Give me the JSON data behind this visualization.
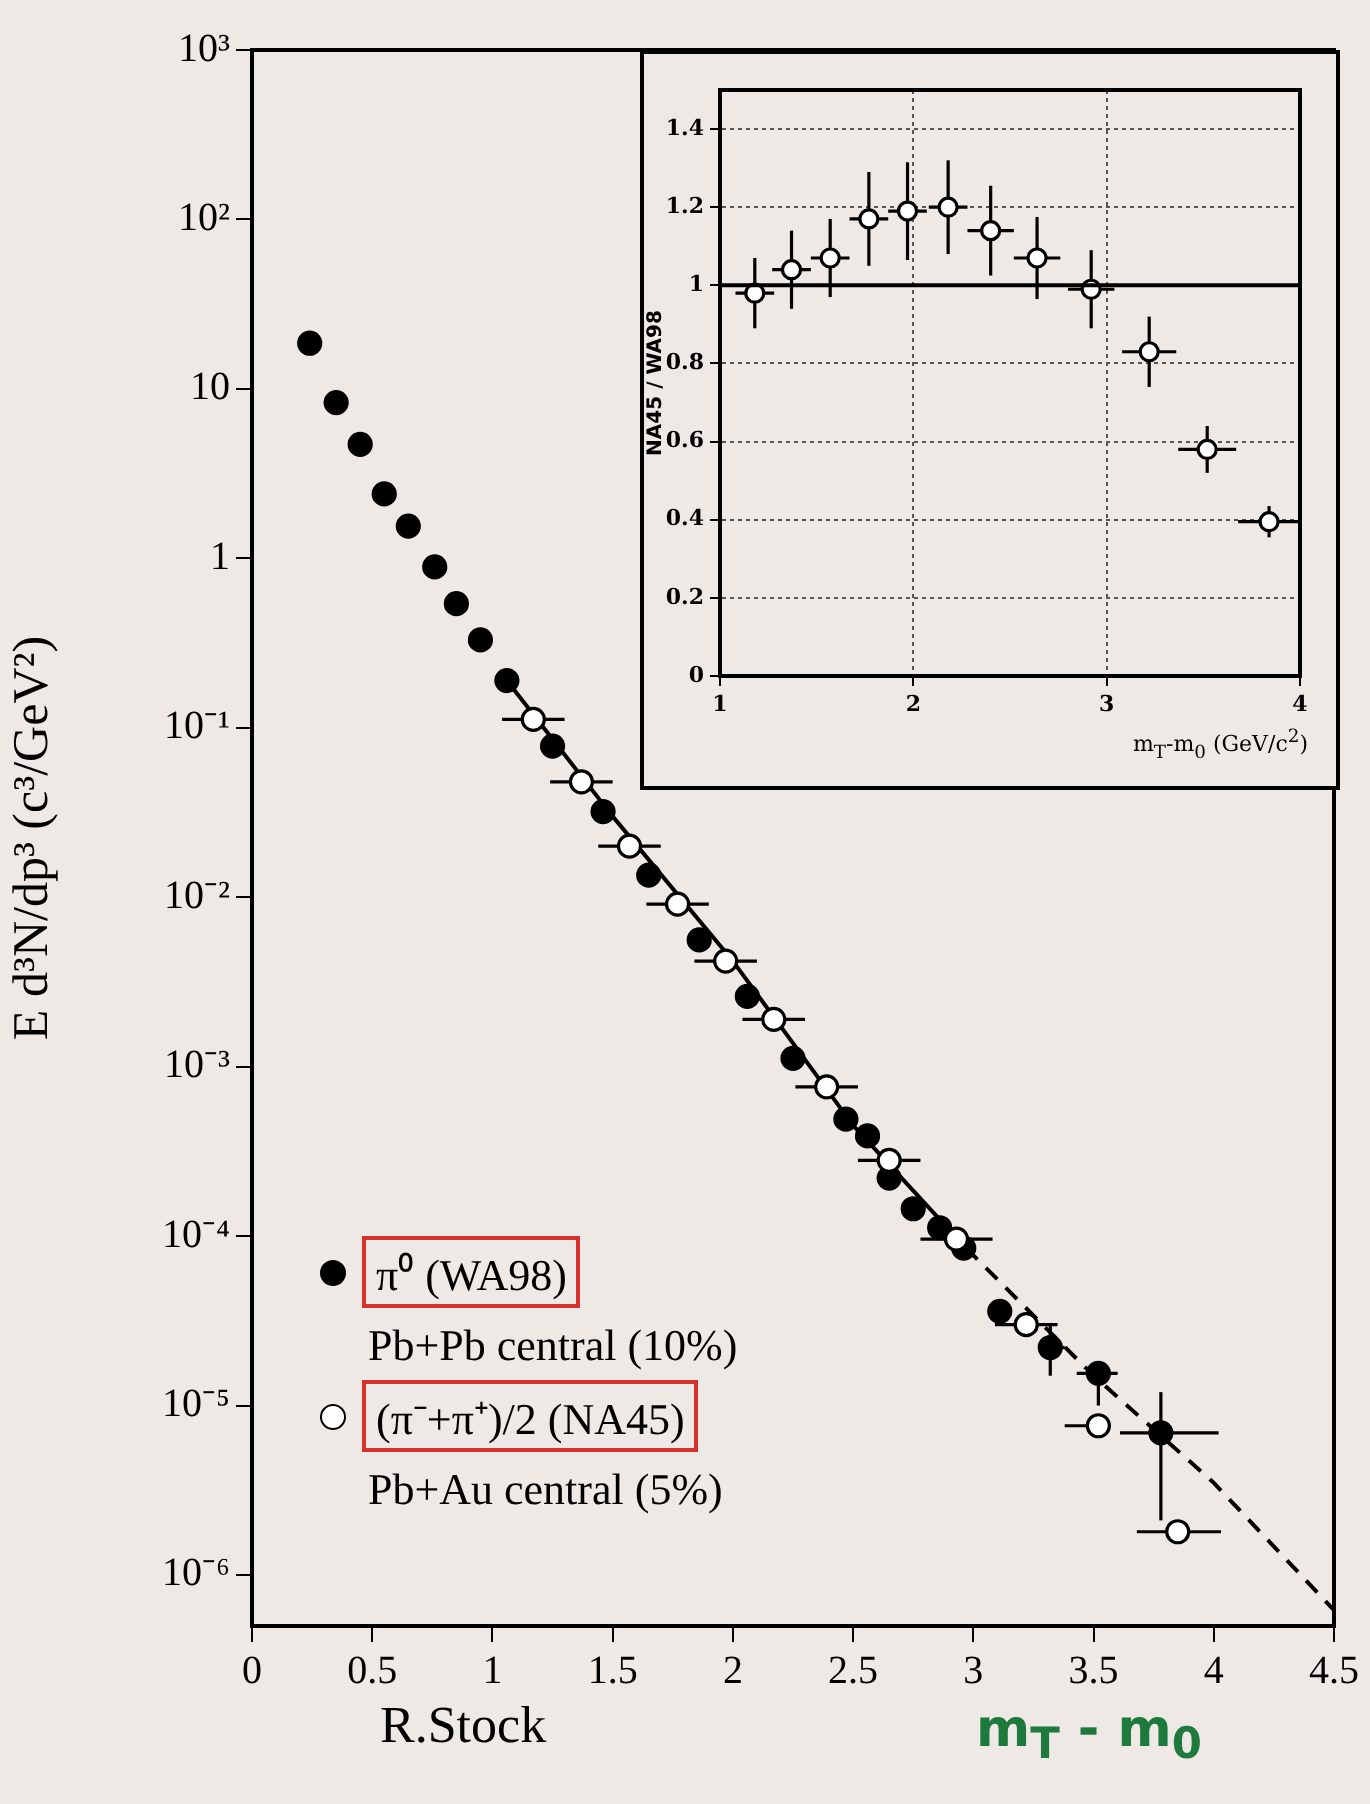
{
  "chart_data": [
    {
      "type": "scatter",
      "ylabel": "E d³N/dp³ (c³/GeV²)",
      "xlabel": "m$_{T}$ - m$_{0}$",
      "log": true,
      "legend": "bottom left",
      "xlim": [
        0,
        4.5
      ],
      "ylim": [
        5e-07,
        1000
      ],
      "xticks": [
        0,
        0.5,
        1,
        1.5,
        2,
        2.5,
        3,
        3.5,
        4,
        4.5
      ],
      "yticks": [
        {
          "value": 1000,
          "label": "10³"
        },
        {
          "value": 100,
          "label": "10²"
        },
        {
          "value": 10,
          "label": "10"
        },
        {
          "value": 1,
          "label": "1"
        },
        {
          "value": 0.1,
          "label": "10⁻¹"
        },
        {
          "value": 0.01,
          "label": "10⁻²"
        },
        {
          "value": 0.001,
          "label": "10⁻³"
        },
        {
          "value": 0.0001,
          "label": "10⁻⁴"
        },
        {
          "value": 1e-05,
          "label": "10⁻⁵"
        },
        {
          "value": 1e-06,
          "label": "10⁻⁶"
        }
      ],
      "annotations": [
        "Pb+Pb central (10%)",
        "Pb+Au central (5%)",
        "R.Stock"
      ],
      "series": [
        {
          "type": "line",
          "color": "#000000",
          "marker": "none",
          "line_style": "solid",
          "x": [
            1.06,
            1.5,
            2.0,
            2.5,
            2.97
          ],
          "values": [
            0.19,
            0.03,
            0.0042,
            0.00045,
            8.5e-05
          ]
        },
        {
          "type": "line",
          "color": "#000000",
          "marker": "none",
          "line_style": "dashed",
          "x": [
            2.97,
            3.5,
            4.0,
            4.5
          ],
          "values": [
            8.5e-05,
            1.5e-05,
            3.5e-06,
            6.2e-07
          ]
        },
        {
          "name": "π⁰ (WA98)",
          "type": "scatter",
          "color": "#000000",
          "marker": "circle",
          "x": [
            0.24,
            0.35,
            0.45,
            0.55,
            0.65,
            0.76,
            0.85,
            0.95,
            1.06,
            1.25,
            1.46,
            1.65,
            1.86,
            2.06,
            2.25,
            2.47,
            2.56,
            2.65,
            2.75,
            2.86,
            2.96,
            3.11,
            3.32,
            3.52,
            3.78
          ],
          "values": [
            18.6,
            8.3,
            4.7,
            2.4,
            1.55,
            0.89,
            0.54,
            0.33,
            0.19,
            0.078,
            0.032,
            0.0135,
            0.0056,
            0.0026,
            0.00112,
            0.00049,
            0.00039,
            0.00022,
            0.000145,
            0.000112,
            8.5e-05,
            3.6e-05,
            2.2e-05,
            1.55e-05,
            6.9e-06
          ],
          "errors": [
            null,
            null,
            null,
            null,
            null,
            null,
            null,
            null,
            null,
            null,
            null,
            null,
            null,
            null,
            null,
            null,
            null,
            null,
            null,
            null,
            null,
            null,
            [
              1.5e-05,
              3e-05
            ],
            [
              1e-05,
              1.8e-05
            ],
            [
              2.1e-06,
              1.2e-05
            ]
          ],
          "xerrors": [
            null,
            null,
            null,
            null,
            null,
            null,
            null,
            null,
            null,
            null,
            null,
            null,
            null,
            null,
            null,
            null,
            null,
            null,
            null,
            null,
            null,
            null,
            [
              3.27,
              3.38
            ],
            [
              3.43,
              3.6
            ],
            [
              3.61,
              4.02
            ]
          ]
        },
        {
          "name": "(π⁻+π⁺)/2 (NA45)",
          "type": "scatter",
          "color": "#ffffff",
          "marker": "circle",
          "x": [
            1.17,
            1.37,
            1.57,
            1.77,
            1.97,
            2.17,
            2.39,
            2.65,
            2.93,
            3.22,
            3.52,
            3.85
          ],
          "values": [
            0.112,
            0.048,
            0.02,
            0.0091,
            0.0042,
            0.0019,
            0.00076,
            0.00028,
            9.6e-05,
            3e-05,
            7.6e-06,
            1.8e-06
          ],
          "xerrors": [
            0.13,
            0.13,
            0.13,
            0.13,
            0.13,
            0.13,
            0.13,
            0.13,
            0.15,
            0.13,
            [
              3.38,
              3.56
            ],
            [
              3.68,
              4.03
            ]
          ]
        }
      ]
    },
    {
      "type": "scatter",
      "ylabel": "NA45 / WA98",
      "xlabel": "m$_{T}$-m$_{0}$ (GeV/c$^{2}$)",
      "grid": true,
      "xlim": [
        1,
        4
      ],
      "ylim": [
        0,
        1.5
      ],
      "xticks": [
        1,
        2,
        3,
        4
      ],
      "yticks": [
        0,
        0.2,
        0.4,
        0.6,
        0.8,
        1,
        1.2,
        1.4
      ],
      "ref_lines": [
        {
          "axis": "y",
          "value": 1,
          "line_style": "solid",
          "color": "#000000"
        }
      ],
      "series": [
        {
          "type": "scatter",
          "color": "#ffffff",
          "marker": "circle",
          "x": [
            1.18,
            1.37,
            1.57,
            1.77,
            1.97,
            2.18,
            2.4,
            2.64,
            2.92,
            3.22,
            3.52,
            3.84
          ],
          "values": [
            0.98,
            1.04,
            1.07,
            1.17,
            1.19,
            1.2,
            1.14,
            1.07,
            0.99,
            0.83,
            0.58,
            0.395
          ],
          "errors": [
            0.09,
            0.1,
            0.1,
            0.12,
            0.125,
            0.12,
            0.115,
            0.105,
            0.1,
            0.09,
            0.06,
            0.04
          ],
          "xerrors": [
            0.1,
            0.1,
            0.1,
            0.1,
            0.1,
            0.1,
            0.12,
            0.12,
            0.12,
            0.14,
            0.15,
            0.16
          ]
        }
      ]
    }
  ]
}
